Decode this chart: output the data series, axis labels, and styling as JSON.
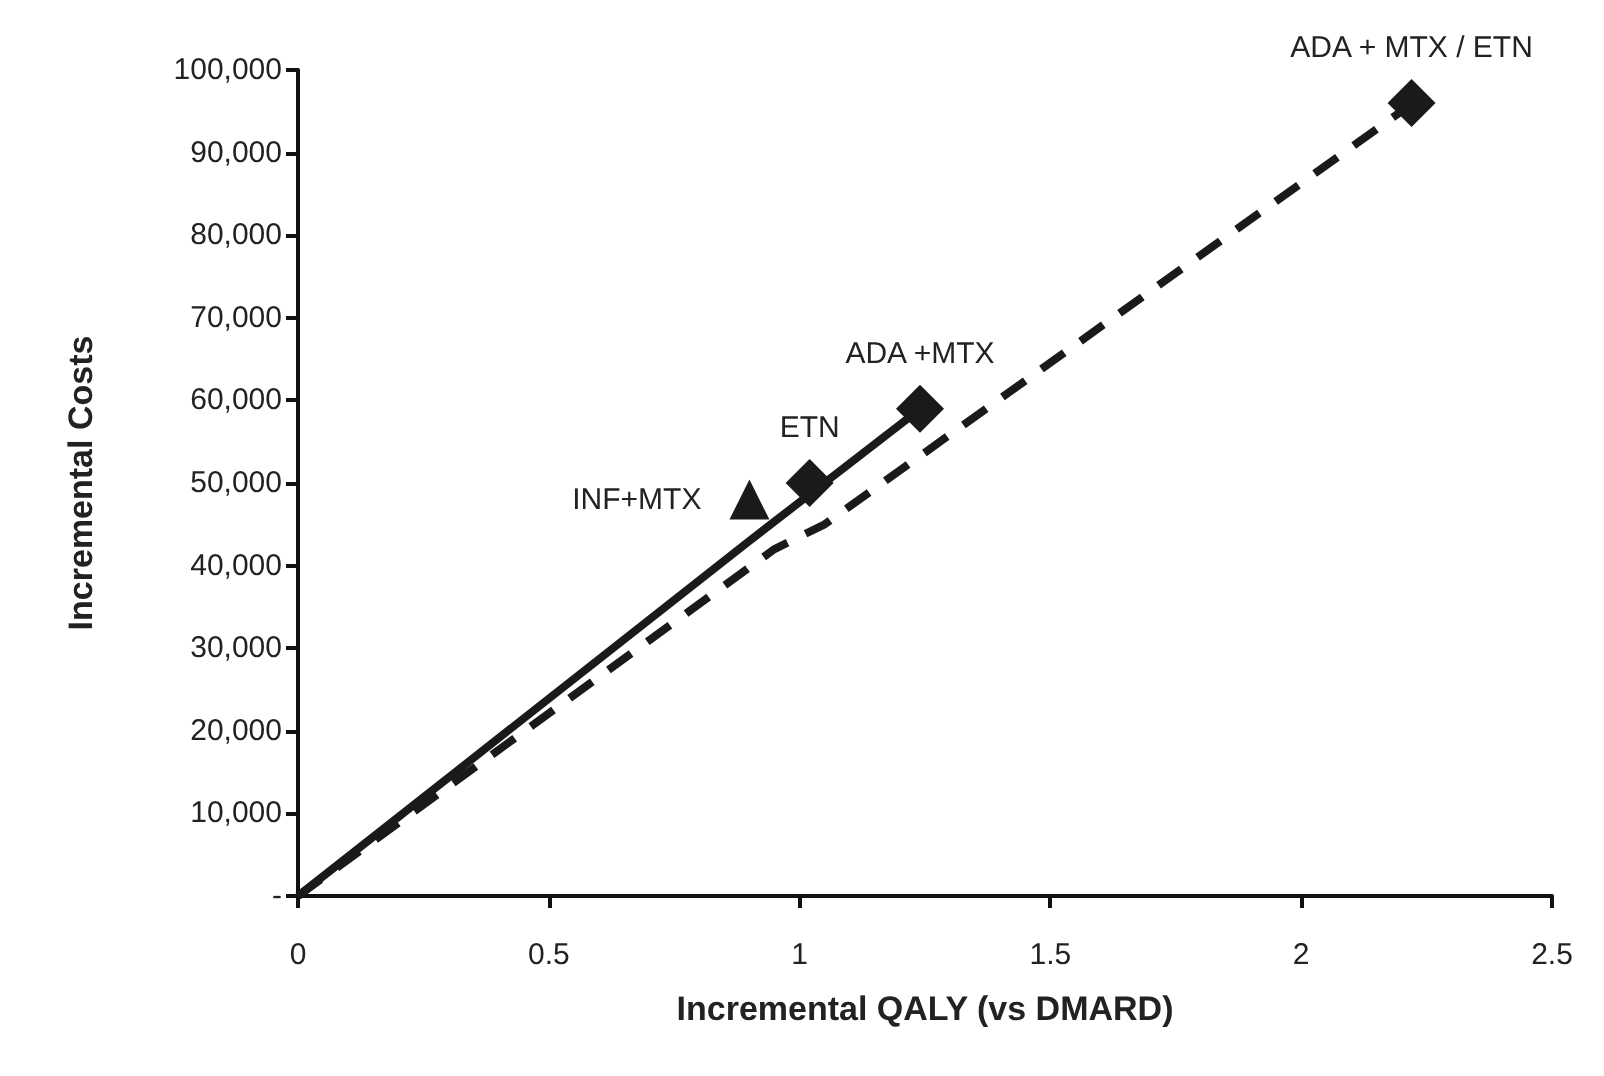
{
  "chart_data": {
    "type": "line",
    "xlabel": "Incremental QALY (vs DMARD)",
    "ylabel": "Incremental Costs",
    "xlim": [
      0,
      2.5
    ],
    "xticks": [
      0,
      0.5,
      1,
      1.5,
      2,
      2.5
    ],
    "ylim": [
      0,
      100000
    ],
    "yticks": [
      {
        "value": 0,
        "label": "-"
      },
      {
        "value": 10000,
        "label": "10,000"
      },
      {
        "value": 20000,
        "label": "20,000"
      },
      {
        "value": 30000,
        "label": "30,000"
      },
      {
        "value": 40000,
        "label": "40,000"
      },
      {
        "value": 50000,
        "label": "50,000"
      },
      {
        "value": 60000,
        "label": "60,000"
      },
      {
        "value": 70000,
        "label": "70,000"
      },
      {
        "value": 80000,
        "label": "80,000"
      },
      {
        "value": 90000,
        "label": "90,000"
      },
      {
        "value": 100000,
        "label": "100,000"
      }
    ],
    "grid": false,
    "legend": false,
    "series": [
      {
        "color": "#1a1a1a",
        "line_style": "solid",
        "marker": "none",
        "x": [
          0,
          0.9,
          1.22
        ],
        "values": [
          0,
          43000,
          58000
        ]
      },
      {
        "color": "#1a1a1a",
        "line_style": "dashed",
        "marker": "none",
        "x": [
          0,
          0.95,
          1.05,
          2.2
        ],
        "values": [
          0,
          42000,
          45000,
          95000
        ]
      },
      {
        "type": "scatter",
        "name": "INF+MTX",
        "color": "#1a1a1a",
        "marker": "triangle",
        "x": [
          0.9
        ],
        "values": [
          48000
        ]
      },
      {
        "type": "scatter",
        "name": "ETN",
        "color": "#1a1a1a",
        "marker": "diamond",
        "x": [
          1.02
        ],
        "values": [
          50000
        ]
      },
      {
        "type": "scatter",
        "name": "ADA +MTX",
        "color": "#1a1a1a",
        "marker": "diamond",
        "x": [
          1.24
        ],
        "values": [
          59000
        ]
      },
      {
        "type": "scatter",
        "name": "ADA + MTX / ETN",
        "color": "#1a1a1a",
        "marker": "diamond",
        "x": [
          2.22
        ],
        "values": [
          96000
        ]
      }
    ]
  }
}
